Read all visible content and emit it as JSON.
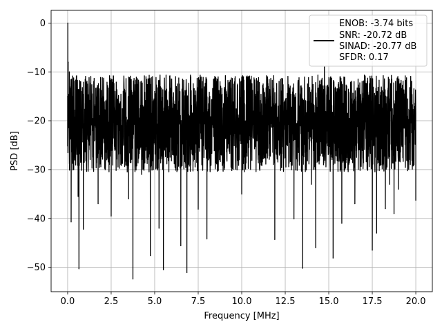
{
  "chart_data": {
    "type": "line",
    "title": "",
    "xlabel": "Frequency [MHz]",
    "ylabel": "PSD [dB]",
    "xlim": [
      -0.95,
      20.95
    ],
    "ylim": [
      -55,
      2.6
    ],
    "xticks": [
      0.0,
      2.5,
      5.0,
      7.5,
      10.0,
      12.5,
      15.0,
      17.5,
      20.0
    ],
    "xtick_labels": [
      "0.0",
      "2.5",
      "5.0",
      "7.5",
      "10.0",
      "12.5",
      "15.0",
      "17.5",
      "20.0"
    ],
    "yticks": [
      0,
      -10,
      -20,
      -30,
      -40,
      -50
    ],
    "ytick_labels": [
      "0",
      "−10",
      "−20",
      "−30",
      "−40",
      "−50"
    ],
    "grid": true,
    "legend": {
      "location": "top-right",
      "lines": [
        "ENOB: -3.74 bits",
        "SNR: -20.72 dB",
        "SINAD: -20.77 dB",
        "SFDR: 0.17"
      ]
    },
    "series": [
      {
        "name": "ENOB: -3.74 bits\nSNR: -20.72 dB\nSINAD: -20.77 dB\nSFDR: 0.17",
        "color": "#000000",
        "description": "noise-like power spectral density, 0 to 20 MHz",
        "noise_floor_mean_db": -20,
        "envelope_upper_db": -10,
        "envelope_lower_db": -30,
        "points": [
          [
            0.0,
            -15
          ],
          [
            0.01,
            0
          ],
          [
            0.03,
            -8
          ],
          [
            0.06,
            -20
          ],
          [
            0.1,
            -10
          ],
          [
            0.15,
            -22
          ],
          [
            0.2,
            -40.7
          ],
          [
            0.25,
            -14
          ],
          [
            0.35,
            -30
          ],
          [
            0.5,
            -18
          ],
          [
            0.6,
            -35.5
          ],
          [
            0.65,
            -50.3
          ],
          [
            0.75,
            -12
          ],
          [
            0.9,
            -42.2
          ],
          [
            1.0,
            -20
          ],
          [
            1.25,
            -25
          ],
          [
            1.5,
            -13
          ],
          [
            1.75,
            -37
          ],
          [
            2.0,
            -17
          ],
          [
            2.25,
            -28
          ],
          [
            2.5,
            -39.5
          ],
          [
            3.0,
            -22
          ],
          [
            3.5,
            -36
          ],
          [
            3.75,
            -52.4
          ],
          [
            4.0,
            -19
          ],
          [
            4.25,
            -31
          ],
          [
            4.5,
            -11
          ],
          [
            4.75,
            -47.6
          ],
          [
            5.0,
            -14
          ],
          [
            5.25,
            -42
          ],
          [
            5.5,
            -50.5
          ],
          [
            5.75,
            -22
          ],
          [
            6.0,
            -26
          ],
          [
            6.5,
            -45.6
          ],
          [
            6.75,
            -15
          ],
          [
            6.85,
            -51.1
          ],
          [
            7.0,
            -20
          ],
          [
            7.5,
            -38.1
          ],
          [
            7.75,
            -12
          ],
          [
            8.0,
            -44.2
          ],
          [
            8.5,
            -24
          ],
          [
            9.0,
            -30
          ],
          [
            9.5,
            -18
          ],
          [
            10.0,
            -35
          ],
          [
            10.5,
            -21
          ],
          [
            11.0,
            -27
          ],
          [
            11.5,
            -13
          ],
          [
            11.9,
            -44.3
          ],
          [
            12.25,
            -26
          ],
          [
            12.75,
            -20
          ],
          [
            13.0,
            -40.1
          ],
          [
            13.5,
            -50.2
          ],
          [
            13.75,
            -16
          ],
          [
            14.0,
            -33
          ],
          [
            14.25,
            -46
          ],
          [
            14.5,
            -20
          ],
          [
            14.75,
            -9
          ],
          [
            15.0,
            -25
          ],
          [
            15.25,
            -48.1
          ],
          [
            15.5,
            -19
          ],
          [
            15.75,
            -41
          ],
          [
            16.0,
            -28
          ],
          [
            16.5,
            -37
          ],
          [
            17.0,
            -22
          ],
          [
            17.5,
            -46.5
          ],
          [
            17.75,
            -43
          ],
          [
            18.0,
            -29
          ],
          [
            18.25,
            -38
          ],
          [
            18.5,
            -33
          ],
          [
            18.75,
            -39
          ],
          [
            19.0,
            -34
          ],
          [
            19.5,
            -24
          ],
          [
            20.0,
            -36.3
          ]
        ]
      }
    ]
  }
}
